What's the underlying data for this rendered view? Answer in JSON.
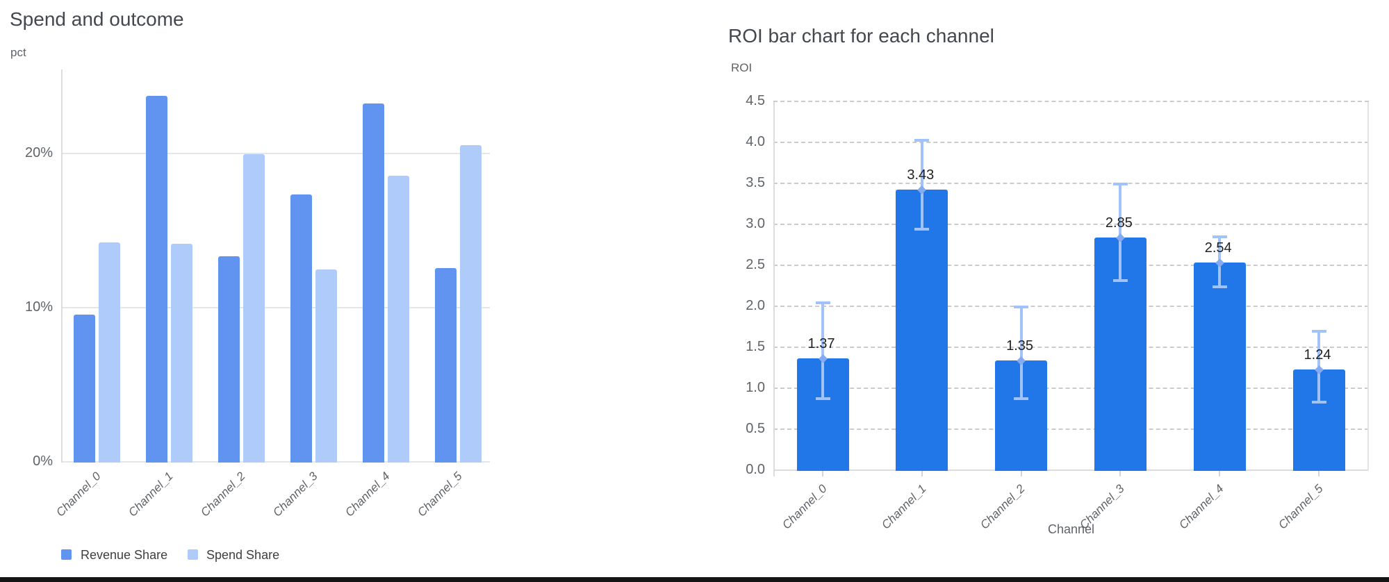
{
  "chart_data": [
    {
      "type": "bar",
      "title": "Spend and outcome",
      "ylabel": "pct",
      "xlabel": "",
      "categories": [
        "Channel_0",
        "Channel_1",
        "Channel_2",
        "Channel_3",
        "Channel_4",
        "Channel_5"
      ],
      "series": [
        {
          "name": "Revenue Share",
          "color": "#6094f0",
          "values": [
            9.6,
            23.8,
            13.4,
            17.4,
            23.3,
            12.6
          ]
        },
        {
          "name": "Spend Share",
          "color": "#aecbfa",
          "values": [
            14.3,
            14.2,
            20.0,
            12.5,
            18.6,
            20.6
          ]
        }
      ],
      "y_ticks": [
        {
          "label": "0%",
          "v": 0
        },
        {
          "label": "10%",
          "v": 10
        },
        {
          "label": "20%",
          "v": 20
        }
      ],
      "ylim": [
        0,
        25.5
      ],
      "grid": "solid-horizontal",
      "legend_position": "bottom-left"
    },
    {
      "type": "bar",
      "title": "ROI bar chart for each channel",
      "ylabel": "ROI",
      "xlabel": "Channel",
      "categories": [
        "Channel_0",
        "Channel_1",
        "Channel_2",
        "Channel_3",
        "Channel_4",
        "Channel_5"
      ],
      "values": [
        1.37,
        3.43,
        1.35,
        2.85,
        2.54,
        1.24
      ],
      "bar_labels": [
        "1.37",
        "3.43",
        "1.35",
        "2.85",
        "2.54",
        "1.24"
      ],
      "error_low": [
        0.88,
        2.95,
        0.88,
        2.32,
        2.25,
        0.84
      ],
      "error_high": [
        2.05,
        4.03,
        2.0,
        3.5,
        2.86,
        1.7
      ],
      "bar_color": "#2176e8",
      "error_color": "#a2c3f9",
      "y_ticks": [
        {
          "label": "0.0",
          "v": 0.0
        },
        {
          "label": "0.5",
          "v": 0.5
        },
        {
          "label": "1.0",
          "v": 1.0
        },
        {
          "label": "1.5",
          "v": 1.5
        },
        {
          "label": "2.0",
          "v": 2.0
        },
        {
          "label": "2.5",
          "v": 2.5
        },
        {
          "label": "3.0",
          "v": 3.0
        },
        {
          "label": "3.5",
          "v": 3.5
        },
        {
          "label": "4.0",
          "v": 4.0
        },
        {
          "label": "4.5",
          "v": 4.5
        }
      ],
      "ylim": [
        0,
        4.5
      ],
      "grid": "dashed-horizontal",
      "legend_position": "none"
    }
  ]
}
